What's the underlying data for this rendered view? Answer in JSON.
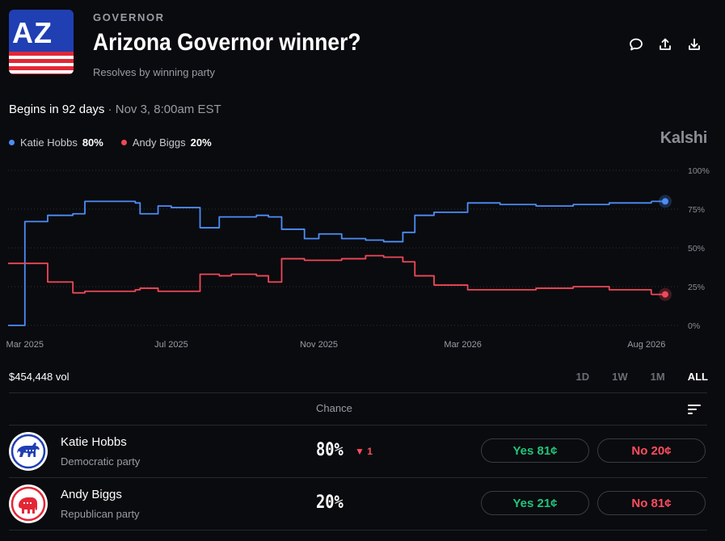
{
  "header": {
    "logo_text": "AZ",
    "category": "GOVERNOR",
    "title": "Arizona Governor winner?",
    "subtitle": "Resolves by winning party",
    "actions": [
      "comment-icon",
      "share-icon",
      "download-icon"
    ]
  },
  "begins": {
    "label": "Begins in 92 days",
    "date": " · Nov 3, 8:00am EST"
  },
  "legend": [
    {
      "name": "Katie Hobbs",
      "pct": "80%",
      "color": "#4d8df7"
    },
    {
      "name": "Andy Biggs",
      "pct": "20%",
      "color": "#f04858"
    }
  ],
  "brand": "Kalshi",
  "chart_data": {
    "type": "line",
    "x_tick_labels": [
      "Mar 2025",
      "Jul 2025",
      "Nov 2025",
      "Mar 2026",
      "Aug 2026"
    ],
    "y_tick_labels": [
      "100%",
      "75%",
      "50%",
      "25%",
      "0%"
    ],
    "ylim": [
      0,
      100
    ],
    "grid": true,
    "x": [
      "2025-02-15",
      "2025-03-01",
      "2025-03-05",
      "2025-03-20",
      "2025-04-10",
      "2025-04-20",
      "2025-05-01",
      "2025-06-01",
      "2025-06-05",
      "2025-06-20",
      "2025-07-01",
      "2025-07-15",
      "2025-07-25",
      "2025-08-10",
      "2025-08-20",
      "2025-09-10",
      "2025-09-20",
      "2025-10-01",
      "2025-10-20",
      "2025-11-01",
      "2025-11-20",
      "2025-12-10",
      "2025-12-25",
      "2026-01-10",
      "2026-01-20",
      "2026-02-05",
      "2026-03-05",
      "2026-04-01",
      "2026-05-01",
      "2026-06-01",
      "2026-07-01",
      "2026-08-05"
    ],
    "series": [
      {
        "name": "Katie Hobbs",
        "color": "#4d8df7",
        "values": [
          0,
          67,
          67,
          71,
          72,
          80,
          80,
          79,
          72,
          77,
          76,
          76,
          63,
          70,
          70,
          71,
          70,
          62,
          56,
          59,
          56,
          55,
          54,
          60,
          71,
          73,
          79,
          78,
          77,
          78,
          79,
          80
        ]
      },
      {
        "name": "Andy Biggs",
        "color": "#f04858",
        "values": [
          40,
          40,
          40,
          28,
          21,
          22,
          22,
          23,
          24,
          22,
          22,
          22,
          33,
          32,
          33,
          32,
          28,
          43,
          42,
          42,
          43,
          45,
          44,
          41,
          32,
          26,
          23,
          23,
          24,
          25,
          23,
          20
        ]
      }
    ]
  },
  "volume": "$454,448 vol",
  "ranges": [
    {
      "label": "1D",
      "active": false
    },
    {
      "label": "1W",
      "active": false
    },
    {
      "label": "1M",
      "active": false
    },
    {
      "label": "ALL",
      "active": true
    }
  ],
  "table": {
    "chance_header": "Chance",
    "rows": [
      {
        "name": "Katie Hobbs",
        "party": "Democratic party",
        "chance": "80%",
        "change": "▼ 1",
        "yes": "Yes 81¢",
        "no": "No 20¢",
        "avatar": "donkey-icon"
      },
      {
        "name": "Andy Biggs",
        "party": "Republican party",
        "chance": "20%",
        "change": "",
        "yes": "Yes 21¢",
        "no": "No 81¢",
        "avatar": "elephant-icon"
      }
    ]
  },
  "colors": {
    "background": "#0a0b0f",
    "democrat_blue": "#1f3fb3",
    "republican_red": "#e32636",
    "yes_green": "#22c47a",
    "no_red": "#ff4d5e"
  }
}
